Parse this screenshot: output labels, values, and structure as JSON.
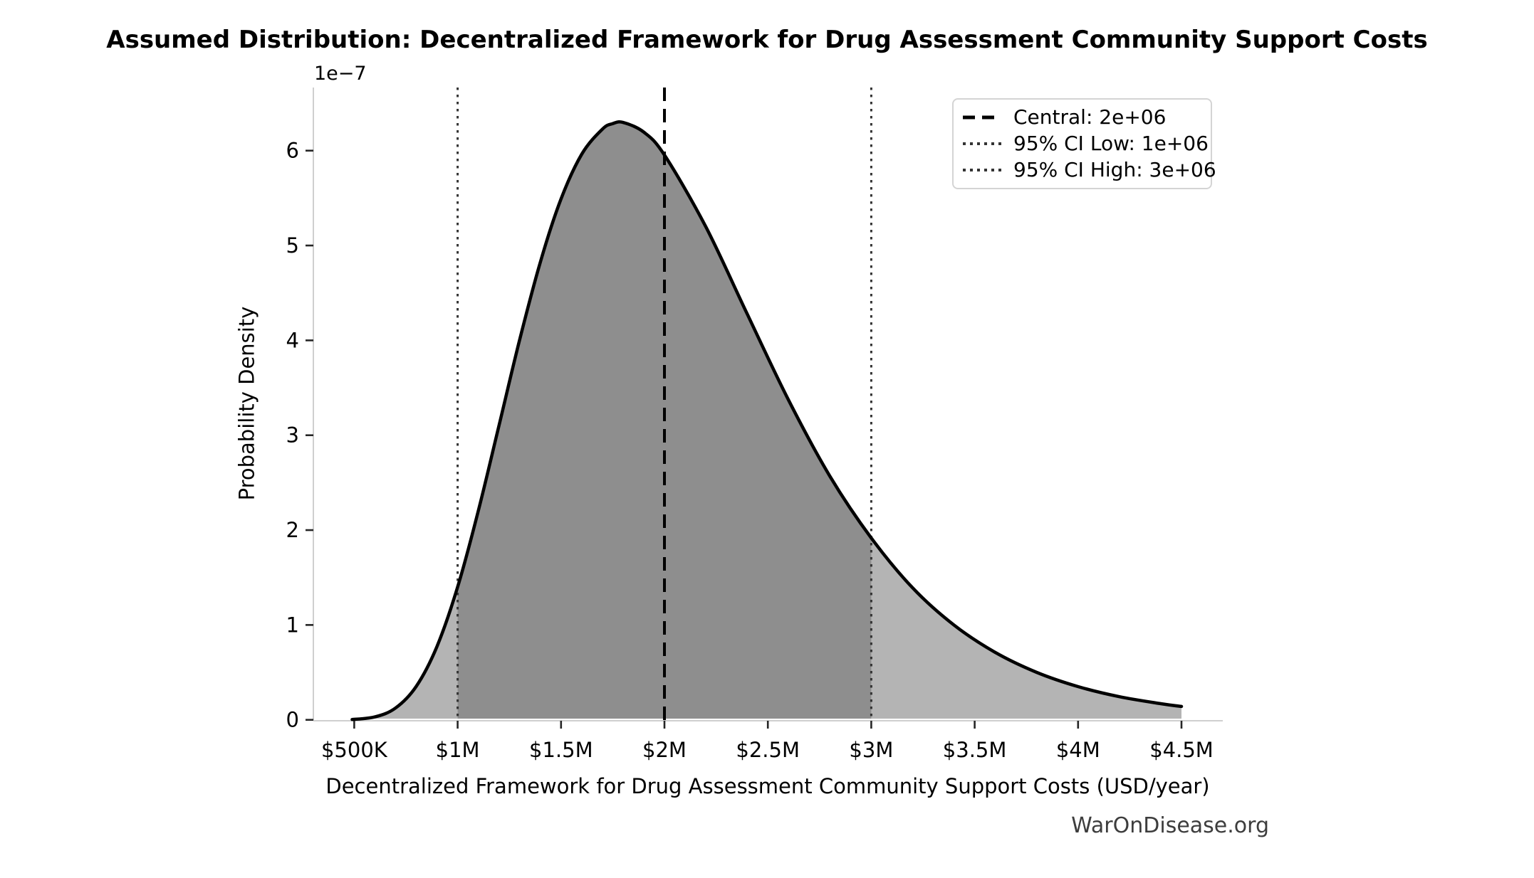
{
  "page": {
    "background": "#ffffff",
    "watermark": "WarOnDisease.org"
  },
  "chart_data": {
    "type": "area",
    "title": "Assumed Distribution: Decentralized Framework for Drug Assessment Community Support Costs",
    "xlabel": "Decentralized Framework for Drug Assessment Community Support Costs (USD/year)",
    "ylabel": "Probability Density",
    "y_scale_offset_label": "1e−7",
    "x_tick_labels": [
      "$500K",
      "$1M",
      "$1.5M",
      "$2M",
      "$2.5M",
      "$3M",
      "$3.5M",
      "$4M",
      "$4.5M"
    ],
    "x_tick_values_usd": [
      500000,
      1000000,
      1500000,
      2000000,
      2500000,
      3000000,
      3500000,
      4000000,
      4500000
    ],
    "y_tick_labels": [
      "0",
      "1",
      "2",
      "3",
      "4",
      "5",
      "6"
    ],
    "y_tick_values_1e7": [
      0,
      1,
      2,
      3,
      4,
      5,
      6
    ],
    "xlim_usd": [
      300000,
      4700000
    ],
    "ylim_1e7": [
      0,
      6.67
    ],
    "grid": false,
    "distribution": "lognormal",
    "central_value_usd": 2000000,
    "ci95_low_usd": 1000000,
    "ci95_high_usd": 3000000,
    "shaded_ci_region_usd": [
      1000000,
      3000000
    ],
    "curve": {
      "x_usd": [
        490000,
        600000,
        700000,
        800000,
        900000,
        1000000,
        1100000,
        1200000,
        1300000,
        1400000,
        1500000,
        1600000,
        1700000,
        1750000,
        1800000,
        1900000,
        2000000,
        2200000,
        2400000,
        2600000,
        2800000,
        3000000,
        3200000,
        3400000,
        3600000,
        3800000,
        4000000,
        4200000,
        4400000,
        4500000
      ],
      "density_1e7": [
        0.004,
        0.031,
        0.125,
        0.353,
        0.773,
        1.401,
        2.203,
        3.103,
        4.007,
        4.826,
        5.491,
        5.962,
        6.227,
        6.285,
        6.297,
        6.195,
        5.954,
        5.198,
        4.279,
        3.371,
        2.568,
        1.917,
        1.391,
        0.999,
        0.71,
        0.5,
        0.35,
        0.244,
        0.17,
        0.141
      ]
    },
    "legend": {
      "position": "upper right",
      "items": [
        {
          "label": "Central: 2e+06",
          "line_style": "dashed",
          "color": "#000000"
        },
        {
          "label": "95% CI Low: 1e+06",
          "line_style": "dotted",
          "color": "#333333"
        },
        {
          "label": "95% CI High: 3e+06",
          "line_style": "dotted",
          "color": "#333333"
        }
      ]
    },
    "colors": {
      "curve": "#000000",
      "fill_tails": "#b4b4b4",
      "fill_ci_region": "#8e8e8e",
      "central_line": "#000000",
      "ci_lines": "#333333",
      "spines": "#cfcfcf",
      "tick_marks": "#262626",
      "text": "#000000",
      "watermark": "#3d3d3d"
    }
  }
}
